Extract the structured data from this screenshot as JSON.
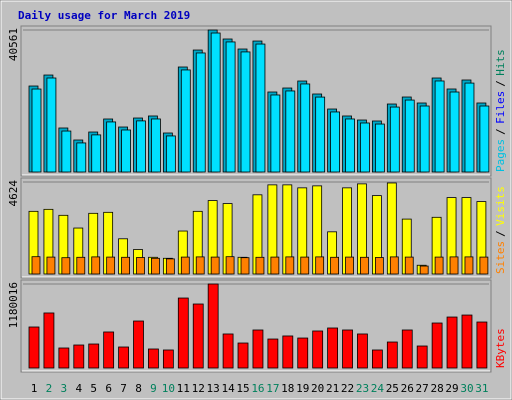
{
  "chart_data": [
    {
      "type": "bar",
      "title": "Daily usage for March 2019",
      "title_color": "#0000c0",
      "legend": [
        {
          "text": "Pages",
          "color": "#00c0e0"
        },
        {
          "text": "Files",
          "color": "#0000ff"
        },
        {
          "text": "Hits",
          "color": "#00805c"
        }
      ],
      "ylim": [
        0,
        40561
      ],
      "yticks": [
        40561
      ],
      "series": [
        {
          "name": "Hits",
          "color": "#00a8c8",
          "values": [
            24560,
            27700,
            12570,
            9140,
            11420,
            15140,
            12850,
            15420,
            16000,
            11140,
            29990,
            34840,
            40561,
            37990,
            35130,
            37410,
            22850,
            23990,
            25990,
            22280,
            17990,
            16000,
            14850,
            14570,
            19420,
            21420,
            19710,
            26850,
            23710,
            26280,
            19710
          ]
        },
        {
          "name": "Files",
          "color": "#00e0ff",
          "values": [
            23700,
            26850,
            11700,
            8300,
            10600,
            14300,
            12000,
            14600,
            15150,
            10300,
            29150,
            34000,
            39700,
            37150,
            34300,
            36550,
            22000,
            23150,
            25150,
            21400,
            17150,
            15150,
            14000,
            13700,
            18550,
            20550,
            18850,
            26000,
            22850,
            25400,
            18850
          ]
        }
      ]
    },
    {
      "type": "bar",
      "legend": [
        {
          "text": "Sites",
          "color": "#ff8000"
        },
        {
          "text": "Visits",
          "color": "#ffff00"
        }
      ],
      "ylim": [
        0,
        4624
      ],
      "yticks": [
        4624
      ],
      "series": [
        {
          "name": "Visits",
          "color": "#ffff00",
          "values": [
            3150,
            3250,
            2950,
            2310,
            3050,
            3100,
            1770,
            1230,
            840,
            790,
            2160,
            3150,
            3690,
            3540,
            840,
            3980,
            4480,
            4480,
            4330,
            4430,
            2120,
            4330,
            4530,
            3940,
            4575,
            2760,
            440,
            2850,
            3840,
            3840,
            3640
          ]
        },
        {
          "name": "Sites",
          "color": "#ff8000",
          "values": [
            870,
            850,
            820,
            840,
            860,
            850,
            840,
            830,
            790,
            760,
            850,
            860,
            850,
            870,
            820,
            840,
            850,
            860,
            850,
            860,
            840,
            850,
            840,
            830,
            860,
            850,
            400,
            850,
            860,
            860,
            850
          ]
        }
      ]
    },
    {
      "type": "bar",
      "legend": [
        {
          "text": "KBytes",
          "color": "#ff0000"
        }
      ],
      "ylim": [
        0,
        1180016
      ],
      "yticks": [
        1180016
      ],
      "categories": [
        "1",
        "2",
        "3",
        "4",
        "5",
        "6",
        "7",
        "8",
        "9",
        "10",
        "11",
        "12",
        "13",
        "14",
        "15",
        "16",
        "17",
        "18",
        "19",
        "20",
        "21",
        "22",
        "23",
        "24",
        "25",
        "26",
        "27",
        "28",
        "29",
        "30",
        "31"
      ],
      "category_colors": [
        "#000000",
        "#00805c",
        "#00805c",
        "#000000",
        "#000000",
        "#000000",
        "#000000",
        "#000000",
        "#00805c",
        "#00805c",
        "#000000",
        "#000000",
        "#000000",
        "#000000",
        "#000000",
        "#00805c",
        "#00805c",
        "#000000",
        "#000000",
        "#000000",
        "#000000",
        "#000000",
        "#00805c",
        "#00805c",
        "#000000",
        "#000000",
        "#000000",
        "#000000",
        "#000000",
        "#00805c",
        "#00805c"
      ],
      "series": [
        {
          "name": "KBytes",
          "color": "#ff0000",
          "values": [
            576000,
            773000,
            281000,
            323000,
            337000,
            506000,
            295000,
            660000,
            267000,
            253000,
            983000,
            899000,
            1180016,
            478000,
            351000,
            534000,
            407000,
            450000,
            421000,
            520000,
            562000,
            534000,
            478000,
            253000,
            365000,
            534000,
            309000,
            632000,
            716000,
            744000,
            646000
          ]
        }
      ]
    }
  ]
}
